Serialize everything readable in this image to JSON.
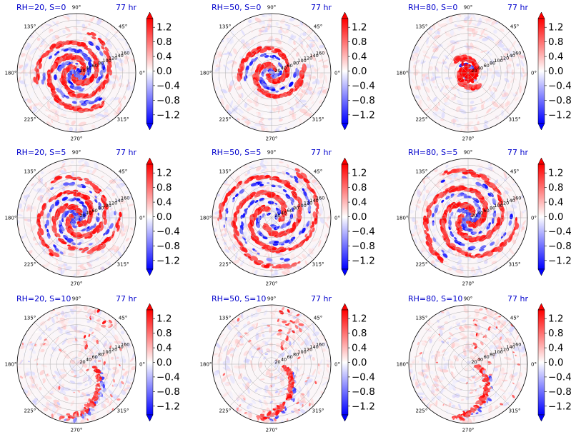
{
  "chart_data": {
    "type": "heatmap",
    "projection": "polar",
    "colormap": "bwr",
    "colors": {
      "negative": "#0000ff",
      "zero": "#ffffff",
      "positive": "#ff0000",
      "title": "#0000cc"
    },
    "colorbar": {
      "ticks": [
        "1.2",
        "0.8",
        "0.4",
        "0.0",
        "−0.4",
        "−0.8",
        "−1.2"
      ],
      "tick_values": [
        1.2,
        0.8,
        0.4,
        0.0,
        -0.4,
        -0.8,
        -1.2
      ],
      "range": [
        -1.4,
        1.4
      ],
      "extend": "both"
    },
    "angular_ticks": [
      "0°",
      "45°",
      "90°",
      "135°",
      "180°",
      "225°",
      "270°",
      "315°"
    ],
    "angular_values": [
      0,
      45,
      90,
      135,
      180,
      225,
      270,
      315
    ],
    "radial_ticks": [
      "20",
      "40",
      "60",
      "80",
      "100",
      "120",
      "140",
      "160"
    ],
    "radial_values": [
      20,
      40,
      60,
      80,
      100,
      120,
      140,
      160
    ],
    "radial_max": 180,
    "panels": [
      {
        "label": "RH=20, S=0",
        "time": "77 hr",
        "pattern": "spiral",
        "arms": 3,
        "inner": 0.08,
        "outer": 0.7,
        "density": 0.9
      },
      {
        "label": "RH=50, S=0",
        "time": "77 hr",
        "pattern": "spiral",
        "arms": 2,
        "inner": 0.06,
        "outer": 0.55,
        "density": 0.9
      },
      {
        "label": "RH=80, S=0",
        "time": "77 hr",
        "pattern": "core",
        "arms": 2,
        "inner": 0.04,
        "outer": 0.3,
        "density": 1.0
      },
      {
        "label": "RH=20, S=5",
        "time": "77 hr",
        "pattern": "spiral",
        "arms": 3,
        "inner": 0.08,
        "outer": 0.75,
        "density": 0.7
      },
      {
        "label": "RH=50, S=5",
        "time": "77 hr",
        "pattern": "spiral",
        "arms": 3,
        "inner": 0.15,
        "outer": 0.9,
        "density": 0.9
      },
      {
        "label": "RH=80, S=5",
        "time": "77 hr",
        "pattern": "spiral",
        "arms": 3,
        "inner": 0.08,
        "outer": 0.85,
        "density": 1.0
      },
      {
        "label": "RH=20, S=10",
        "time": "77 hr",
        "pattern": "band",
        "arms": 1,
        "inner": 0.3,
        "outer": 0.95,
        "density": 0.5
      },
      {
        "label": "RH=50, S=10",
        "time": "77 hr",
        "pattern": "band",
        "arms": 1,
        "inner": 0.2,
        "outer": 0.95,
        "density": 0.8
      },
      {
        "label": "RH=80, S=10",
        "time": "77 hr",
        "pattern": "band",
        "arms": 1,
        "inner": 0.15,
        "outer": 0.95,
        "density": 0.7
      }
    ]
  }
}
